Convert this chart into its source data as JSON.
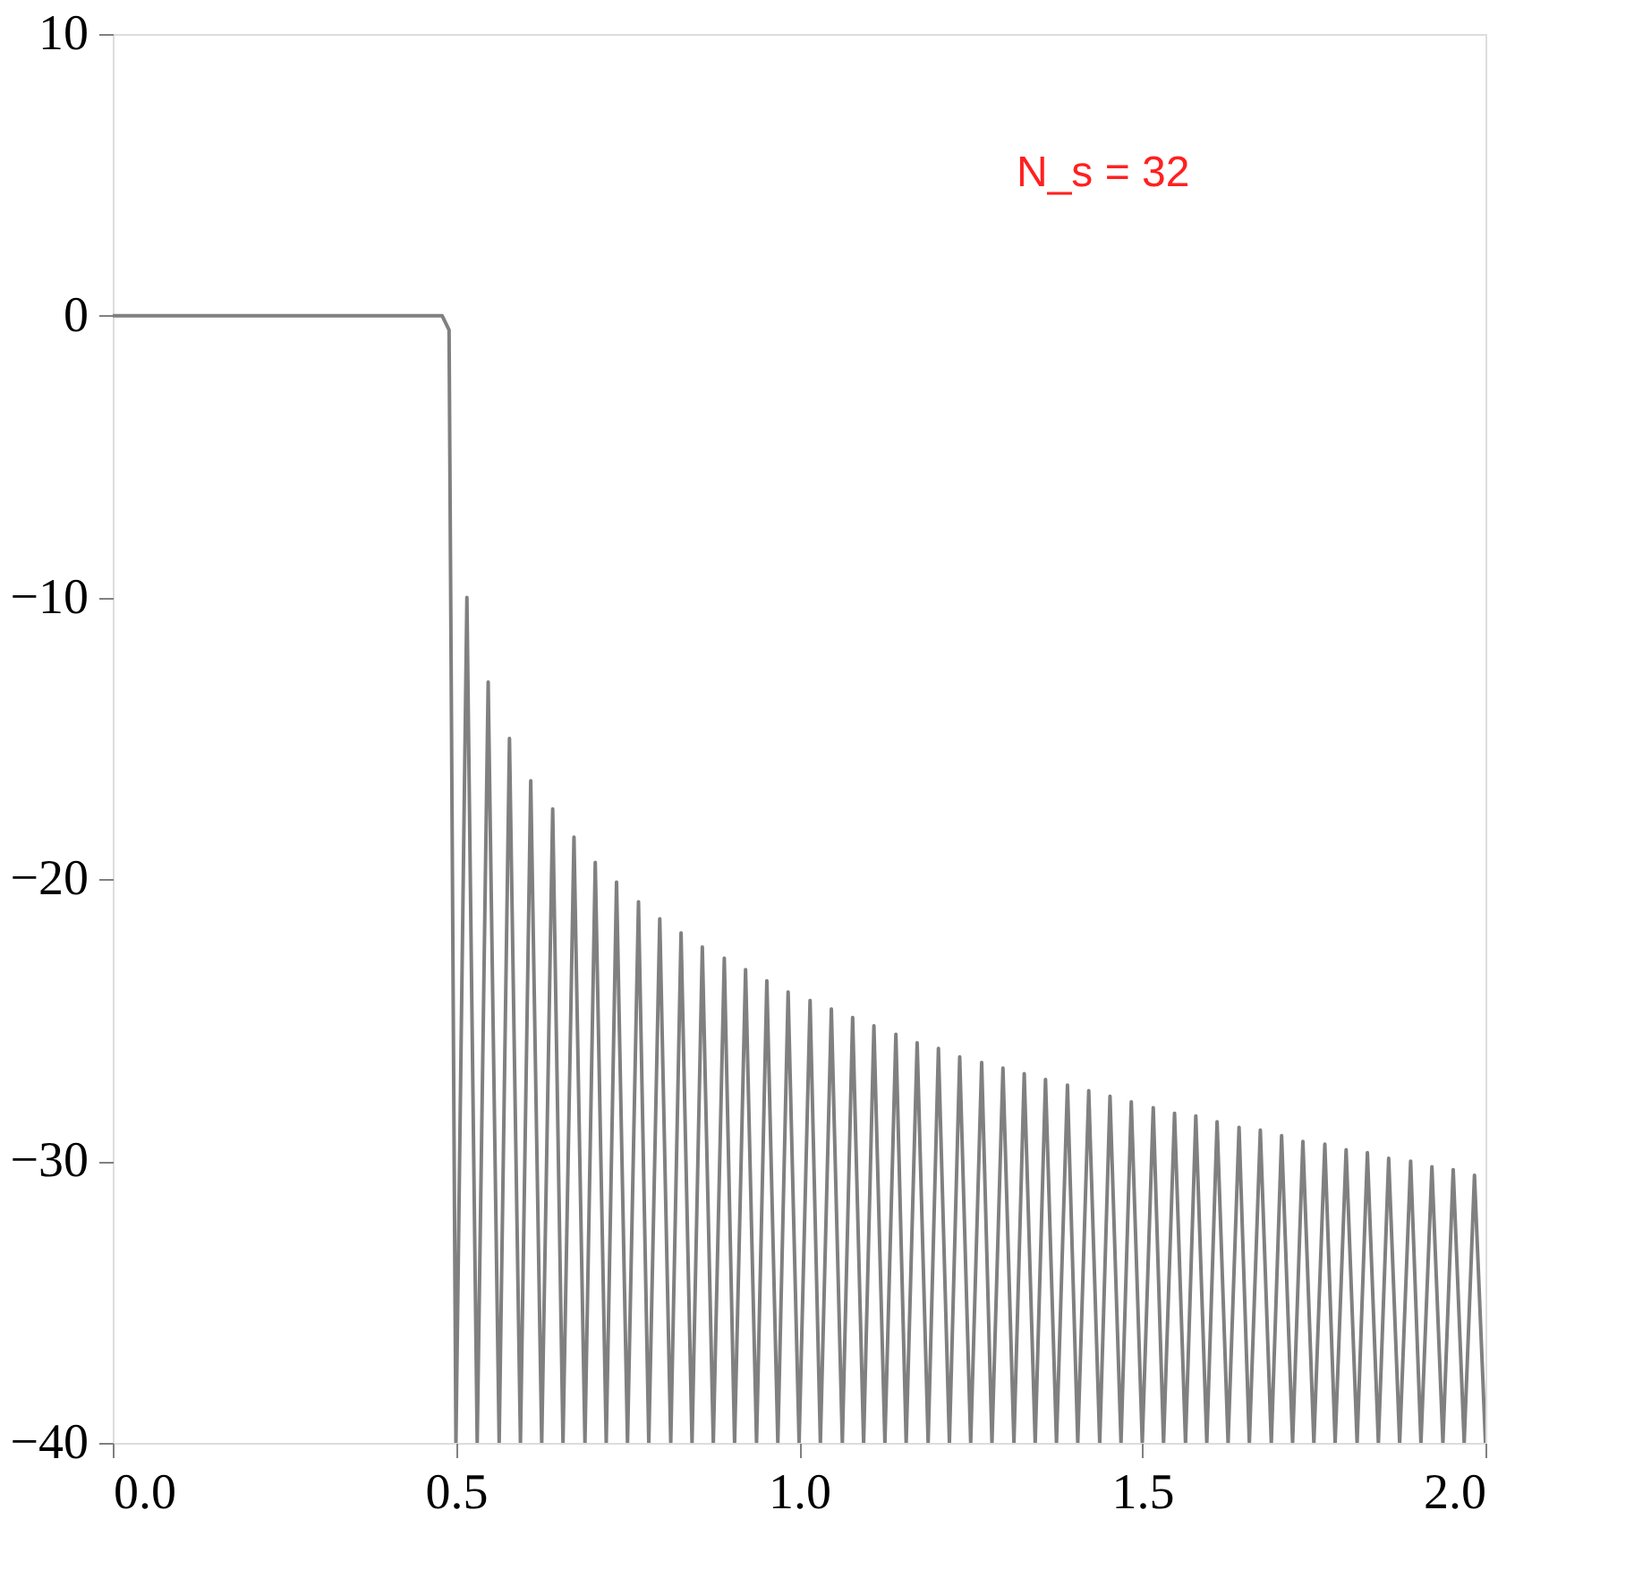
{
  "chart_data": {
    "type": "line",
    "x": [
      0,
      0.45,
      0.48,
      0.49,
      0.5,
      0.516,
      0.531,
      0.547,
      0.563,
      0.578,
      0.594,
      0.609,
      0.625,
      0.641,
      0.656,
      0.672,
      0.688,
      0.703,
      0.719,
      0.734,
      0.75,
      0.766,
      0.781,
      0.797,
      0.813,
      0.828,
      0.844,
      0.859,
      0.875,
      0.891,
      0.906,
      0.922,
      0.938,
      0.953,
      0.969,
      0.984,
      1.0,
      1.016,
      1.031,
      1.047,
      1.063,
      1.078,
      1.094,
      1.109,
      1.125,
      1.141,
      1.156,
      1.172,
      1.188,
      1.203,
      1.219,
      1.234,
      1.25,
      1.266,
      1.281,
      1.297,
      1.313,
      1.328,
      1.344,
      1.359,
      1.375,
      1.391,
      1.406,
      1.422,
      1.438,
      1.453,
      1.469,
      1.484,
      1.5,
      1.516,
      1.531,
      1.547,
      1.563,
      1.578,
      1.594,
      1.609,
      1.625,
      1.641,
      1.656,
      1.672,
      1.688,
      1.703,
      1.719,
      1.734,
      1.75,
      1.766,
      1.781,
      1.797,
      1.813,
      1.828,
      1.844,
      1.859,
      1.875,
      1.891,
      1.906,
      1.922,
      1.938,
      1.953,
      1.969,
      1.984,
      2.0
    ],
    "series": [
      {
        "color": "#808080",
        "values": [
          0,
          0,
          0,
          -0.5,
          -40,
          -10,
          -40,
          -13,
          -40,
          -15,
          -40,
          -16.5,
          -40,
          -17.5,
          -40,
          -18.5,
          -40,
          -19.4,
          -40,
          -20.1,
          -40,
          -20.8,
          -40,
          -21.4,
          -40,
          -21.9,
          -40,
          -22.4,
          -40,
          -22.8,
          -40,
          -23.2,
          -40,
          -23.6,
          -40,
          -24,
          -40,
          -24.3,
          -40,
          -24.6,
          -40,
          -24.9,
          -40,
          -25.2,
          -40,
          -25.5,
          -40,
          -25.8,
          -40,
          -26,
          -40,
          -26.3,
          -40,
          -26.5,
          -40,
          -26.7,
          -40,
          -26.9,
          -40,
          -27.1,
          -40,
          -27.3,
          -40,
          -27.5,
          -40,
          -27.7,
          -40,
          -27.9,
          -40,
          -28.1,
          -40,
          -28.3,
          -40,
          -28.4,
          -40,
          -28.6,
          -40,
          -28.8,
          -40,
          -28.9,
          -40,
          -29.1,
          -40,
          -29.3,
          -40,
          -29.4,
          -40,
          -29.6,
          -40,
          -29.7,
          -40,
          -29.9,
          -40,
          -30,
          -40,
          -30.2,
          -40,
          -30.3,
          -40,
          -30.5,
          -40
        ]
      }
    ],
    "xlim": [
      0,
      2
    ],
    "xticks": [
      {
        "value": 0,
        "label": "0.0"
      },
      {
        "value": 0.5,
        "label": "0.5"
      },
      {
        "value": 1,
        "label": "1.0"
      },
      {
        "value": 1.5,
        "label": "1.5"
      },
      {
        "value": 2,
        "label": "2.0"
      }
    ],
    "ylim": [
      -40,
      10
    ],
    "yticks": [
      -40,
      -30,
      -20,
      -10,
      0,
      10
    ],
    "annotations": [
      "N_s = 32"
    ],
    "grid": false
  }
}
